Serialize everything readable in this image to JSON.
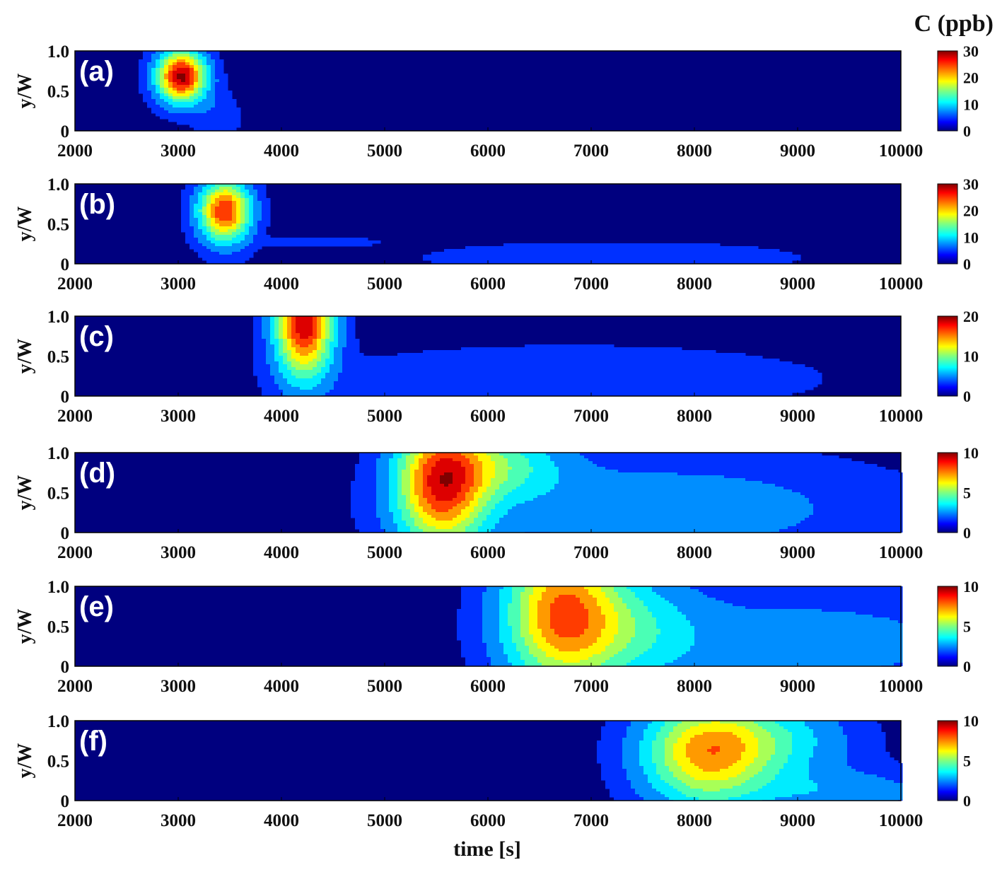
{
  "chart_data": {
    "type": "heatmap",
    "xlabel": "time [s]",
    "ylabel": "y/W",
    "colorbar_title": "C (ppb)",
    "colormap": "jet",
    "background_color": "#00007f",
    "xlim": [
      2000,
      10000
    ],
    "ylim": [
      0,
      1
    ],
    "x_ticks": [
      "2000",
      "3000",
      "4000",
      "5000",
      "6000",
      "7000",
      "8000",
      "9000",
      "10000"
    ],
    "y_ticks": [
      "0",
      "0.5",
      "1.0"
    ],
    "panels": [
      {
        "label": "(a)",
        "vmax": 30,
        "colorbar_ticks": [
          "0",
          "10",
          "20",
          "30"
        ],
        "peaks": [
          {
            "t": 3030,
            "y": 0.68,
            "c": 28,
            "sigma_t": 160,
            "sigma_y": 0.22
          },
          {
            "t": 3380,
            "y": 0.15,
            "c": 2.5,
            "sigma_t": 150,
            "sigma_y": 0.25
          }
        ]
      },
      {
        "label": "(b)",
        "vmax": 30,
        "colorbar_ticks": [
          "0",
          "10",
          "20",
          "30"
        ],
        "peaks": [
          {
            "t": 3450,
            "y": 0.66,
            "c": 24,
            "sigma_t": 170,
            "sigma_y": 0.26
          },
          {
            "t": 4300,
            "y": 0.28,
            "c": 1.5,
            "sigma_t": 450,
            "sigma_y": 0.05
          },
          {
            "t": 7200,
            "y": 0.08,
            "c": 1.6,
            "sigma_t": 1700,
            "sigma_y": 0.18
          }
        ]
      },
      {
        "label": "(c)",
        "vmax": 20,
        "colorbar_ticks": [
          "0",
          "10",
          "20"
        ],
        "peaks": [
          {
            "t": 4220,
            "y": 0.95,
            "c": 18,
            "sigma_t": 190,
            "sigma_y": 0.48
          },
          {
            "t": 6800,
            "y": 0.22,
            "c": 1.8,
            "sigma_t": 1650,
            "sigma_y": 0.28
          }
        ]
      },
      {
        "label": "(d)",
        "vmax": 10,
        "colorbar_ticks": [
          "0",
          "5",
          "10"
        ],
        "peaks": [
          {
            "t": 5550,
            "y": 0.6,
            "c": 7.5,
            "sigma_t": 300,
            "sigma_y": 0.55
          },
          {
            "t": 6100,
            "y": 0.85,
            "c": 3.0,
            "sigma_t": 450,
            "sigma_y": 0.3
          },
          {
            "t": 7700,
            "y": 0.3,
            "c": 1.6,
            "sigma_t": 1500,
            "sigma_y": 0.45
          }
        ]
      },
      {
        "label": "(e)",
        "vmax": 10,
        "colorbar_ticks": [
          "0",
          "5",
          "10"
        ],
        "peaks": [
          {
            "t": 6700,
            "y": 0.7,
            "c": 6.2,
            "sigma_t": 380,
            "sigma_y": 0.65
          },
          {
            "t": 7300,
            "y": 0.5,
            "c": 2.4,
            "sigma_t": 500,
            "sigma_y": 0.5
          },
          {
            "t": 9000,
            "y": 0.3,
            "c": 1.5,
            "sigma_t": 1400,
            "sigma_y": 0.45
          }
        ]
      },
      {
        "label": "(f)",
        "vmax": 10,
        "colorbar_ticks": [
          "0",
          "5",
          "10"
        ],
        "peaks": [
          {
            "t": 8100,
            "y": 0.58,
            "c": 5.6,
            "sigma_t": 420,
            "sigma_y": 0.45
          },
          {
            "t": 8700,
            "y": 0.75,
            "c": 2.6,
            "sigma_t": 550,
            "sigma_y": 0.35
          },
          {
            "t": 9400,
            "y": 0.1,
            "c": 1.6,
            "sigma_t": 700,
            "sigma_y": 0.2
          }
        ]
      }
    ]
  }
}
